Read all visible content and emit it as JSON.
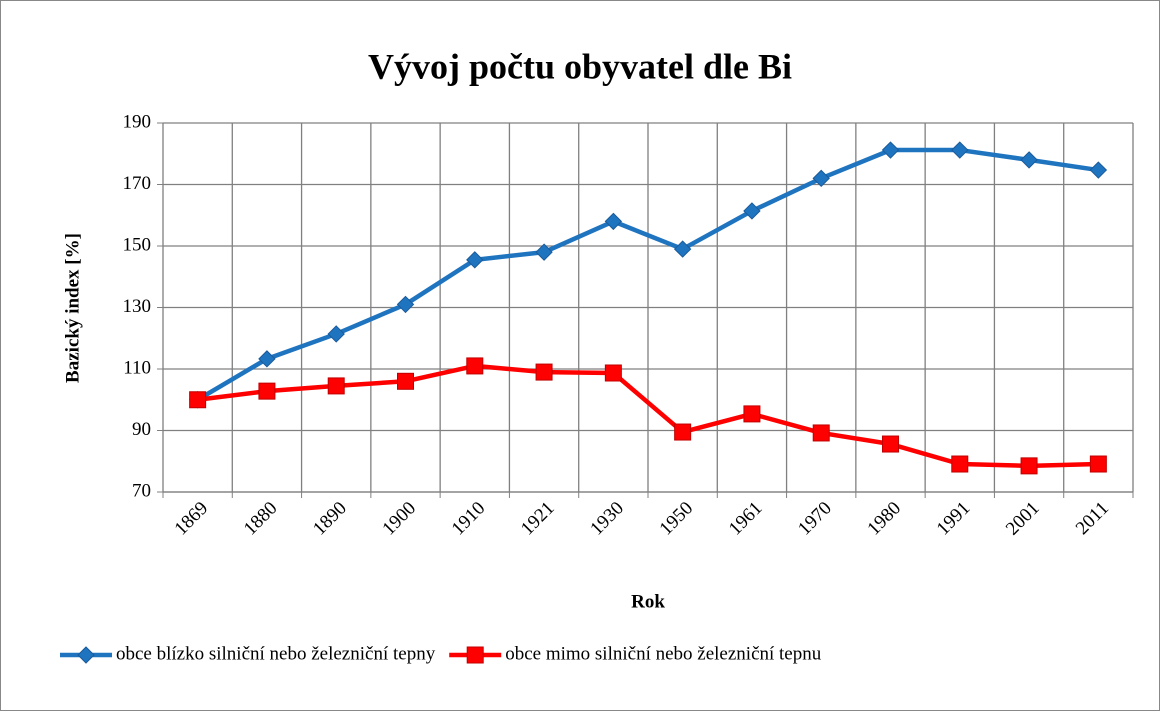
{
  "chart_data": {
    "type": "line",
    "title": "Vývoj počtu obyvatel dle Bi",
    "x_label": "Rok",
    "y_label": "Bazický index [%]",
    "categories": [
      "1869",
      "1880",
      "1890",
      "1900",
      "1910",
      "1921",
      "1930",
      "1950",
      "1961",
      "1970",
      "1980",
      "1991",
      "2001",
      "2011"
    ],
    "series": [
      {
        "name": "obce blízko silniční nebo železniční tepny",
        "color": "#1f74c0",
        "marker": "diamond",
        "values": [
          100,
          113.3,
          121.4,
          131,
          145.5,
          148,
          158,
          149,
          161.4,
          172,
          181.2,
          181.2,
          178,
          174.7
        ]
      },
      {
        "name": "obce mimo silniční nebo železniční tepnu",
        "color": "#ff0000",
        "marker": "square",
        "values": [
          100,
          102.8,
          104.5,
          106,
          111,
          109,
          108.7,
          89.5,
          95.4,
          89.2,
          85.6,
          79.1,
          78.5,
          79.1
        ]
      }
    ],
    "ylim": [
      70,
      190
    ],
    "yticks": [
      70,
      90,
      110,
      130,
      150,
      170,
      190
    ],
    "grid": true,
    "legend": "bottom"
  }
}
